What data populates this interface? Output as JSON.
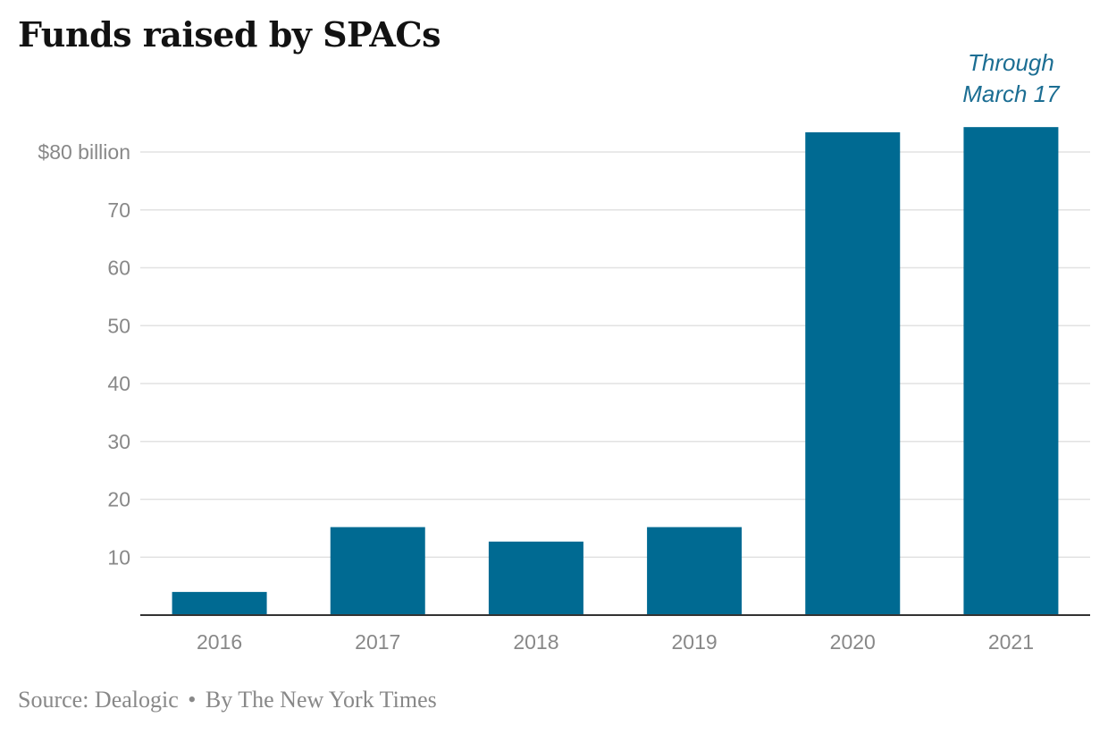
{
  "chart_data": {
    "type": "bar",
    "title": "Funds raised by SPACs",
    "categories": [
      "2016",
      "2017",
      "2018",
      "2019",
      "2020",
      "2021"
    ],
    "values": [
      4,
      15.2,
      12.7,
      15.2,
      83.4,
      84.3
    ],
    "ylim": [
      0,
      80
    ],
    "yticks": [
      10,
      20,
      30,
      40,
      50,
      60,
      70,
      80
    ],
    "ytick_labels": [
      "10",
      "20",
      "30",
      "40",
      "50",
      "60",
      "70",
      "$80 billion"
    ],
    "annotation": {
      "category": "2021",
      "lines": [
        "Through",
        "March 17"
      ]
    },
    "grid": true,
    "bar_color": "#006a92"
  },
  "source": {
    "label": "Source:",
    "name": "Dealogic",
    "separator": "•",
    "credit": "By The New York Times"
  }
}
